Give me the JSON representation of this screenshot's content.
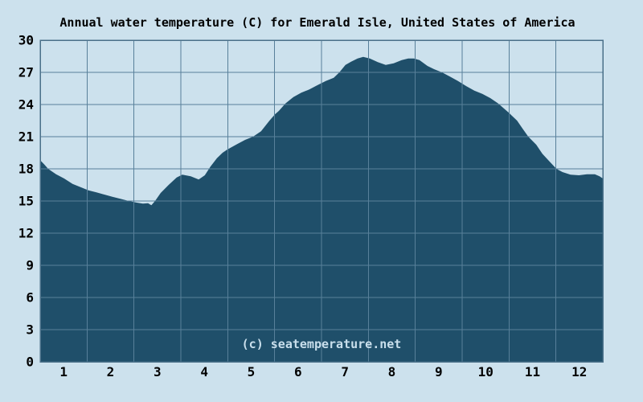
{
  "title": "Annual water temperature (C) for Emerald Isle, United States of America",
  "watermark": "(c) seatemperature.net",
  "colors": {
    "background": "#cce1ed",
    "area_fill": "#1f4f6a",
    "grid": "#58809a",
    "border": "#4a7089",
    "text": "#000000",
    "watermark_text": "#c9dfec"
  },
  "chart_data": {
    "type": "area",
    "title": "Annual water temperature (C) for Emerald Isle, United States of America",
    "xlabel": "",
    "ylabel": "",
    "x_tick_labels": [
      "1",
      "2",
      "3",
      "4",
      "5",
      "6",
      "7",
      "8",
      "9",
      "10",
      "11",
      "12"
    ],
    "y_tick_values": [
      0,
      3,
      6,
      9,
      12,
      15,
      18,
      21,
      24,
      27,
      30
    ],
    "ylim": [
      0,
      30
    ],
    "xlim_months": [
      0,
      12
    ],
    "grid": true,
    "legend": false,
    "monthly_mean_c": [
      17.1,
      15.4,
      15.5,
      17.3,
      20.9,
      25.0,
      27.7,
      28.0,
      27.0,
      24.9,
      20.4,
      17.4
    ],
    "profile_month_temp": [
      [
        0.0,
        18.8
      ],
      [
        0.09,
        18.4
      ],
      [
        0.17,
        18.0
      ],
      [
        0.34,
        17.5
      ],
      [
        0.51,
        17.1
      ],
      [
        0.69,
        16.6
      ],
      [
        0.86,
        16.3
      ],
      [
        1.03,
        16.0
      ],
      [
        1.2,
        15.8
      ],
      [
        1.37,
        15.6
      ],
      [
        1.54,
        15.4
      ],
      [
        1.71,
        15.2
      ],
      [
        1.89,
        15.0
      ],
      [
        2.06,
        14.85
      ],
      [
        2.19,
        14.75
      ],
      [
        2.3,
        14.8
      ],
      [
        2.37,
        14.6
      ],
      [
        2.45,
        15.0
      ],
      [
        2.57,
        15.75
      ],
      [
        2.74,
        16.5
      ],
      [
        2.91,
        17.2
      ],
      [
        3.03,
        17.45
      ],
      [
        3.21,
        17.3
      ],
      [
        3.38,
        17.0
      ],
      [
        3.51,
        17.4
      ],
      [
        3.63,
        18.2
      ],
      [
        3.77,
        19.0
      ],
      [
        3.89,
        19.5
      ],
      [
        3.99,
        19.8
      ],
      [
        4.2,
        20.3
      ],
      [
        4.37,
        20.7
      ],
      [
        4.54,
        21.0
      ],
      [
        4.71,
        21.5
      ],
      [
        4.89,
        22.5
      ],
      [
        5.01,
        23.1
      ],
      [
        5.09,
        23.4
      ],
      [
        5.23,
        24.1
      ],
      [
        5.4,
        24.7
      ],
      [
        5.57,
        25.1
      ],
      [
        5.74,
        25.4
      ],
      [
        5.91,
        25.8
      ],
      [
        6.09,
        26.2
      ],
      [
        6.26,
        26.5
      ],
      [
        6.38,
        27.0
      ],
      [
        6.51,
        27.7
      ],
      [
        6.63,
        28.0
      ],
      [
        6.77,
        28.3
      ],
      [
        6.89,
        28.45
      ],
      [
        7.03,
        28.3
      ],
      [
        7.2,
        27.95
      ],
      [
        7.37,
        27.7
      ],
      [
        7.54,
        27.85
      ],
      [
        7.71,
        28.15
      ],
      [
        7.85,
        28.3
      ],
      [
        7.97,
        28.3
      ],
      [
        8.09,
        28.15
      ],
      [
        8.26,
        27.6
      ],
      [
        8.4,
        27.3
      ],
      [
        8.57,
        27.0
      ],
      [
        8.74,
        26.6
      ],
      [
        8.91,
        26.2
      ],
      [
        9.09,
        25.7
      ],
      [
        9.26,
        25.3
      ],
      [
        9.43,
        25.0
      ],
      [
        9.6,
        24.6
      ],
      [
        9.77,
        24.1
      ],
      [
        9.99,
        23.25
      ],
      [
        10.17,
        22.5
      ],
      [
        10.29,
        21.75
      ],
      [
        10.41,
        21.0
      ],
      [
        10.58,
        20.25
      ],
      [
        10.71,
        19.4
      ],
      [
        10.85,
        18.75
      ],
      [
        11.01,
        18.0
      ],
      [
        11.14,
        17.7
      ],
      [
        11.31,
        17.45
      ],
      [
        11.49,
        17.4
      ],
      [
        11.66,
        17.5
      ],
      [
        11.83,
        17.5
      ],
      [
        11.93,
        17.3
      ],
      [
        12.0,
        17.1
      ]
    ]
  }
}
